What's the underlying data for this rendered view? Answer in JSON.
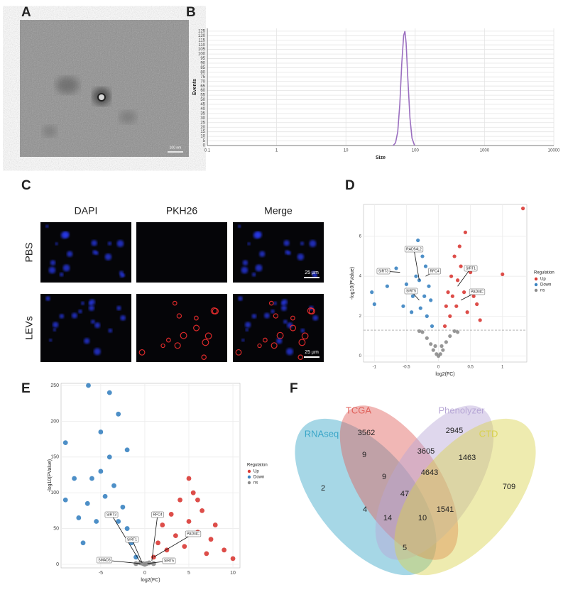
{
  "panel_labels": [
    "A",
    "B",
    "C",
    "D",
    "E",
    "F"
  ],
  "tem_image": {
    "scale_bar": "100 nm"
  },
  "microscopy": {
    "columns": [
      "DAPI",
      "PKH26",
      "Merge"
    ],
    "rows": [
      "PBS",
      "LEVs"
    ],
    "scale_bar": "25 µm"
  },
  "chart_data": [
    {
      "type": "line",
      "xlabel": "Size",
      "ylabel": "Events",
      "xscale": "log",
      "grid": true,
      "color": "#9b6fc0",
      "x": [
        48,
        52,
        56,
        60,
        64,
        68,
        71,
        74,
        78,
        84,
        90,
        98
      ],
      "values": [
        0,
        3,
        15,
        45,
        90,
        120,
        125,
        112,
        75,
        30,
        8,
        0
      ],
      "xlim": [
        0.1,
        10000
      ],
      "xticks": [
        0.1,
        1,
        10,
        100,
        1000,
        10000
      ],
      "ylim": [
        0,
        128
      ],
      "yticks": [
        0,
        5,
        10,
        15,
        20,
        25,
        30,
        35,
        40,
        45,
        50,
        55,
        60,
        65,
        70,
        75,
        80,
        85,
        90,
        95,
        100,
        105,
        110,
        115,
        120,
        125
      ]
    },
    {
      "type": "volcano",
      "xlabel": "log2(FC)",
      "ylabel": "-log10(PValue)",
      "legend_title": "Regulation",
      "hline": 1.3,
      "xlim": [
        -1.17,
        1.38
      ],
      "xticks": [
        -1.0,
        -0.5,
        0.0,
        0.5,
        1.0
      ],
      "ylim": [
        -0.3,
        7.6
      ],
      "yticks": [
        0,
        2,
        4,
        6
      ],
      "series": [
        {
          "name": "Up",
          "color": "#d93a35",
          "x": [
            0.1,
            0.12,
            0.15,
            0.18,
            0.2,
            0.22,
            0.25,
            0.28,
            0.3,
            0.33,
            0.35,
            0.4,
            0.42,
            0.45,
            0.5,
            0.55,
            0.6,
            0.65,
            1.0,
            1.32
          ],
          "values": [
            1.5,
            2.5,
            3.2,
            2.0,
            4.0,
            3.0,
            5.0,
            2.5,
            3.8,
            5.5,
            4.5,
            3.2,
            6.2,
            2.2,
            4.2,
            3.0,
            2.6,
            1.8,
            4.1,
            7.4
          ]
        },
        {
          "name": "Down",
          "color": "#3a83c1",
          "x": [
            -0.1,
            -0.12,
            -0.15,
            -0.18,
            -0.2,
            -0.22,
            -0.25,
            -0.28,
            -0.3,
            -0.32,
            -0.35,
            -0.4,
            -0.42,
            -0.5,
            -0.55,
            -0.66,
            -0.8,
            -1.04,
            -1.0
          ],
          "values": [
            1.5,
            2.8,
            3.5,
            2.0,
            4.5,
            3.0,
            5.0,
            2.4,
            3.8,
            5.8,
            4.0,
            3.0,
            2.2,
            3.6,
            2.5,
            4.4,
            3.5,
            3.2,
            2.6
          ]
        },
        {
          "name": "ns",
          "color": "#8c8c8c",
          "x": [
            -0.3,
            -0.25,
            -0.18,
            -0.12,
            -0.08,
            -0.05,
            -0.03,
            0,
            0.03,
            0.05,
            0.07,
            0.12,
            0.18,
            0.25,
            0.3
          ],
          "values": [
            1.25,
            1.2,
            0.9,
            0.6,
            0.3,
            0.5,
            0.1,
            0,
            0.1,
            0.5,
            0.3,
            0.7,
            1.0,
            1.25,
            1.2
          ]
        }
      ],
      "annotations": [
        {
          "label": "RAD54L2",
          "x": -0.3,
          "y": 3.8
        },
        {
          "label": "SIRT3",
          "x": -0.6,
          "y": 4.2
        },
        {
          "label": "RFC4",
          "x": -0.2,
          "y": 4.0
        },
        {
          "label": "SIRT5",
          "x": -0.3,
          "y": 2.8
        },
        {
          "label": "SIRT1",
          "x": 0.3,
          "y": 3.5
        },
        {
          "label": "PADI4C",
          "x": 0.35,
          "y": 2.8
        }
      ]
    },
    {
      "type": "volcano",
      "xlabel": "log2(FC)",
      "ylabel": "-log10(PValue)",
      "legend_title": "Regulation",
      "xlim": [
        -9.5,
        10.8
      ],
      "xticks": [
        -5,
        0,
        5,
        10
      ],
      "ylim": [
        -5,
        253
      ],
      "yticks": [
        0,
        50,
        100,
        150,
        200,
        250
      ],
      "series": [
        {
          "name": "Up",
          "color": "#d93a35",
          "x": [
            1,
            1.5,
            2,
            2.5,
            3,
            3.5,
            4,
            4.5,
            5,
            5.5,
            6,
            6.5,
            7,
            7.5,
            8,
            9,
            10,
            3,
            5,
            6
          ],
          "values": [
            10,
            30,
            55,
            20,
            70,
            40,
            90,
            25,
            60,
            100,
            45,
            75,
            15,
            35,
            55,
            20,
            8,
            5,
            120,
            90
          ]
        },
        {
          "name": "Down",
          "color": "#3a83c1",
          "x": [
            -1,
            -1.5,
            -2,
            -2.5,
            -3,
            -3.5,
            -4,
            -4.5,
            -5,
            -5,
            -5.5,
            -6,
            -6.5,
            -7,
            -7.5,
            -8,
            -9,
            -9,
            -4,
            -3,
            -2,
            -6.4
          ],
          "values": [
            10,
            30,
            50,
            80,
            60,
            110,
            150,
            95,
            185,
            130,
            60,
            120,
            85,
            30,
            65,
            120,
            90,
            170,
            240,
            210,
            160,
            250
          ]
        },
        {
          "name": "ns",
          "color": "#8c8c8c",
          "x": [
            -1,
            -0.5,
            -0.2,
            0,
            0.2,
            0.5,
            1
          ],
          "values": [
            1,
            2,
            1,
            0,
            1,
            2,
            1
          ]
        }
      ],
      "annotations": [
        {
          "label": "SIRT3",
          "x": -0.5,
          "y": 3
        },
        {
          "label": "RFC4",
          "x": 0.8,
          "y": 5
        },
        {
          "label": "SIRT1",
          "x": -0.3,
          "y": 2
        },
        {
          "label": "PADI4C",
          "x": 1,
          "y": 10
        },
        {
          "label": "SMAD3",
          "x": -0.5,
          "y": 1
        },
        {
          "label": "SIRT5",
          "x": 0.3,
          "y": 1
        }
      ]
    },
    {
      "type": "venn",
      "sets": [
        {
          "name": "RNAseq",
          "color": "#3aa6c8"
        },
        {
          "name": "TCGA",
          "color": "#e0605a"
        },
        {
          "name": "Phenolyzer",
          "color": "#b7a7d6"
        },
        {
          "name": "CTD",
          "color": "#d9d24e"
        }
      ],
      "values": [
        3562,
        2945,
        9,
        3605,
        1463,
        4643,
        2,
        9,
        709,
        47,
        4,
        14,
        10,
        1541,
        5
      ]
    }
  ]
}
